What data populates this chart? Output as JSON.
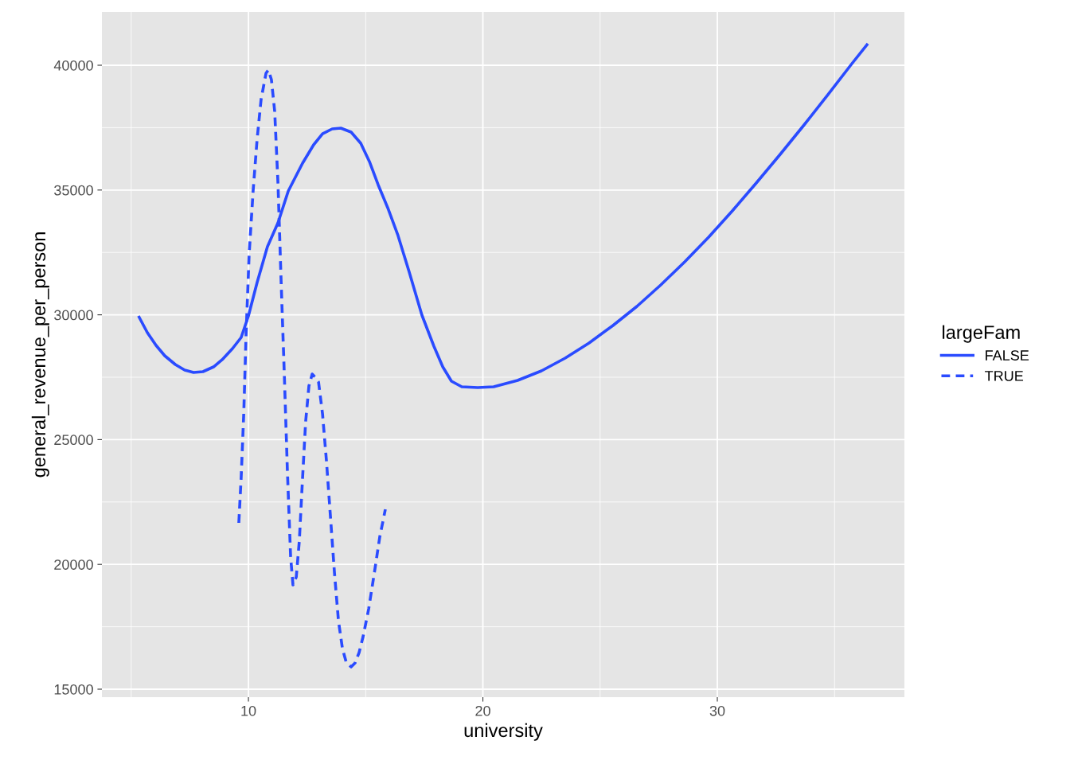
{
  "chart_data": {
    "type": "line",
    "xlabel": "university",
    "ylabel": "general_revenue_per_person",
    "legend_title": "largeFam",
    "xlim": [
      3.75,
      37.98
    ],
    "xticks": [
      10,
      20,
      30
    ],
    "ylim": [
      14681,
      42136
    ],
    "yticks": [
      15000,
      20000,
      25000,
      30000,
      35000,
      40000
    ],
    "grid": true,
    "legend": "right",
    "series": [
      {
        "name": "FALSE",
        "color": "#2a4bff",
        "line_style": "solid",
        "x": [
          5.31,
          5.69,
          6.06,
          6.43,
          6.88,
          7.28,
          7.66,
          8.06,
          8.51,
          8.91,
          9.32,
          9.69,
          10.0,
          10.37,
          10.81,
          11.26,
          11.7,
          12.31,
          12.78,
          13.16,
          13.57,
          13.94,
          14.38,
          14.79,
          15.16,
          15.53,
          15.94,
          16.38,
          16.86,
          17.4,
          17.91,
          18.29,
          18.66,
          19.1,
          19.78,
          20.46,
          21.48,
          22.5,
          23.51,
          24.53,
          25.55,
          26.57,
          27.59,
          28.61,
          29.63,
          30.64,
          31.66,
          32.68,
          33.7,
          34.72,
          35.74,
          36.42
        ],
        "values": [
          29955,
          29286,
          28775,
          28361,
          28010,
          27787,
          27691,
          27723,
          27914,
          28233,
          28648,
          29094,
          29955,
          31294,
          32730,
          33686,
          34962,
          36078,
          36811,
          37254,
          37449,
          37481,
          37321,
          36875,
          36142,
          35217,
          34292,
          33176,
          31709,
          29987,
          28744,
          27914,
          27340,
          27117,
          27085,
          27117,
          27372,
          27755,
          28265,
          28871,
          29573,
          30338,
          31199,
          32124,
          33112,
          34164,
          35281,
          36429,
          37608,
          38820,
          40064,
          40861
        ]
      },
      {
        "name": "TRUE",
        "color": "#2a4bff",
        "line_style": "dashed",
        "x": [
          9.59,
          9.69,
          9.8,
          9.9,
          10.03,
          10.2,
          10.37,
          10.54,
          10.75,
          10.85,
          10.98,
          11.12,
          11.26,
          11.39,
          11.53,
          11.66,
          11.8,
          11.9,
          12.04,
          12.17,
          12.31,
          12.44,
          12.58,
          12.72,
          12.85,
          12.99,
          13.16,
          13.33,
          13.5,
          13.67,
          13.84,
          14.01,
          14.18,
          14.38,
          14.55,
          14.72,
          14.89,
          15.13,
          15.37,
          15.6,
          15.84
        ],
        "values": [
          21664,
          23482,
          26033,
          29222,
          32411,
          34962,
          37034,
          38629,
          39681,
          39809,
          39426,
          38151,
          35281,
          31454,
          27627,
          23801,
          20292,
          19177,
          19496,
          20931,
          23482,
          25714,
          27149,
          27627,
          27500,
          27309,
          26033,
          24120,
          21888,
          19655,
          17742,
          16626,
          16052,
          15893,
          16052,
          16467,
          17104,
          18221,
          19655,
          21091,
          22206
        ]
      }
    ]
  }
}
